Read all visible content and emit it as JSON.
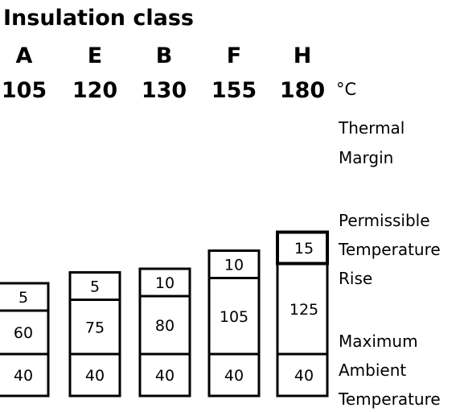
{
  "title": "Insulation class",
  "unit": "°C",
  "classes": [
    {
      "letter": "A",
      "temperature": "105",
      "ambient": "40",
      "rise": "60",
      "margin": "5"
    },
    {
      "letter": "E",
      "temperature": "120",
      "ambient": "40",
      "rise": "75",
      "margin": "5"
    },
    {
      "letter": "B",
      "temperature": "130",
      "ambient": "40",
      "rise": "80",
      "margin": "10"
    },
    {
      "letter": "F",
      "temperature": "155",
      "ambient": "40",
      "rise": "105",
      "margin": "10"
    },
    {
      "letter": "H",
      "temperature": "180",
      "ambient": "40",
      "rise": "125",
      "margin": "15"
    }
  ],
  "legend": {
    "thermal_margin": [
      "Thermal",
      "Margin"
    ],
    "temperature_rise": [
      "Permissible",
      "Temperature",
      "Rise"
    ],
    "ambient": [
      "Maximum",
      "Ambient",
      "Temperature"
    ]
  }
}
